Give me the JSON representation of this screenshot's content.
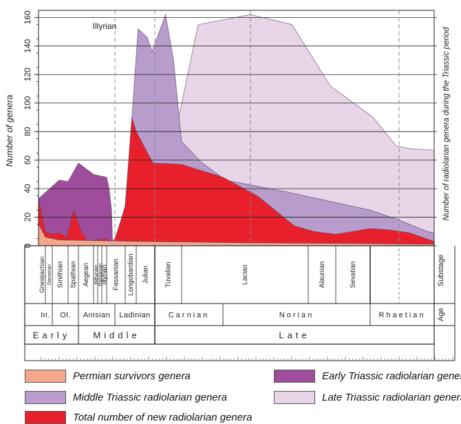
{
  "chart_data": {
    "type": "area",
    "ylabel": "Number of genera",
    "right_label": "Number of radiolarian genera during the Triassic period",
    "annotation": "Illyrian",
    "ylim": [
      0,
      165
    ],
    "yticks": [
      0,
      20,
      40,
      60,
      80,
      100,
      120,
      140,
      160
    ],
    "grid": true,
    "substages": [
      "Griesbachian",
      "Dienerian",
      "Smithian",
      "Spathian",
      "Aegean",
      "Bithynian",
      "Pelsonian",
      "Illyrian",
      "Fassanian",
      "Longobardian",
      "Julian",
      "Tuvalian",
      "Lacian",
      "Alaunian",
      "Sevatian",
      ""
    ],
    "ages": [
      "In.",
      "Ol.",
      "Anisian",
      "Ladinian",
      "Carnian",
      "Norian",
      "Rhaetian"
    ],
    "epochs": [
      "Early",
      "Middle",
      "Late"
    ],
    "row_labels": {
      "substage": "Substage",
      "age": "Age"
    },
    "series": [
      {
        "name": "Late Triassic radiolarian genera",
        "color": "#e8d5e8",
        "points": [
          [
            0,
            0
          ],
          [
            6.0,
            0
          ],
          [
            7.5,
            55
          ],
          [
            8.4,
            155
          ],
          [
            10.0,
            162
          ],
          [
            11.3,
            155
          ],
          [
            12.8,
            112
          ],
          [
            14.1,
            90
          ],
          [
            14.9,
            70
          ],
          [
            15.3,
            68
          ],
          [
            16.0,
            67
          ],
          [
            16.0,
            0
          ]
        ]
      },
      {
        "name": "Middle Triassic radiolarian genera",
        "color": "#b89ccc",
        "points": [
          [
            0,
            0
          ],
          [
            4.5,
            0
          ],
          [
            4.9,
            20
          ],
          [
            5.2,
            48
          ],
          [
            5.7,
            100
          ],
          [
            6.1,
            152
          ],
          [
            6.6,
            146
          ],
          [
            6.85,
            136
          ],
          [
            7.4,
            162
          ],
          [
            7.7,
            130
          ],
          [
            8.0,
            73
          ],
          [
            8.5,
            58
          ],
          [
            9.1,
            46
          ],
          [
            11.0,
            38
          ],
          [
            14.0,
            25
          ],
          [
            15.0,
            18
          ],
          [
            15.8,
            10
          ],
          [
            16.0,
            9
          ],
          [
            16.0,
            0
          ]
        ]
      },
      {
        "name": "Early Triassic radiolarian genera",
        "color": "#a04c9c",
        "points": [
          [
            0,
            0
          ],
          [
            0,
            33
          ],
          [
            0.8,
            46
          ],
          [
            1.15,
            45
          ],
          [
            1.8,
            58
          ],
          [
            2.3,
            50
          ],
          [
            3.0,
            48
          ],
          [
            3.3,
            40
          ],
          [
            3.6,
            25
          ],
          [
            3.7,
            5
          ],
          [
            4.0,
            0
          ]
        ]
      },
      {
        "name": "Total number of new radiolarian genera",
        "color": "#e8202b",
        "points": [
          [
            0,
            0
          ],
          [
            0,
            33
          ],
          [
            0.32,
            10
          ],
          [
            0.55,
            8
          ],
          [
            0.8,
            9
          ],
          [
            1.1,
            6
          ],
          [
            1.5,
            25
          ],
          [
            1.9,
            10
          ],
          [
            2.1,
            3
          ],
          [
            3.0,
            5
          ],
          [
            3.6,
            0
          ],
          [
            4.2,
            9
          ],
          [
            5.0,
            28
          ],
          [
            5.6,
            90
          ],
          [
            6.0,
            80
          ],
          [
            6.9,
            58
          ],
          [
            8.0,
            57
          ],
          [
            9.0,
            48
          ],
          [
            10.2,
            35
          ],
          [
            11.4,
            14
          ],
          [
            12.2,
            10
          ],
          [
            13.0,
            8
          ],
          [
            14.0,
            12
          ],
          [
            14.7,
            11
          ],
          [
            15.3,
            9
          ],
          [
            16.0,
            3
          ],
          [
            16.0,
            0
          ]
        ]
      },
      {
        "name": "Permian survivors genera",
        "color": "#f4a98f",
        "points": [
          [
            0,
            0
          ],
          [
            0,
            15
          ],
          [
            0.32,
            6
          ],
          [
            0.8,
            4
          ],
          [
            6.0,
            3
          ],
          [
            10.0,
            2
          ],
          [
            14.0,
            1.5
          ],
          [
            16.0,
            1
          ],
          [
            16.0,
            0
          ]
        ]
      }
    ]
  },
  "legend": [
    {
      "label": "Permian survivors genera",
      "color": "#f4a98f"
    },
    {
      "label": "Early Triassic radiolarian genera",
      "color": "#a04c9c"
    },
    {
      "label": "Middle Triassic radiolarian genera",
      "color": "#b89ccc"
    },
    {
      "label": "Late Triassic radiolarian genera",
      "color": "#e8d5e8"
    },
    {
      "label": "Total number of new radiolarian genera",
      "color": "#e8202b"
    }
  ]
}
